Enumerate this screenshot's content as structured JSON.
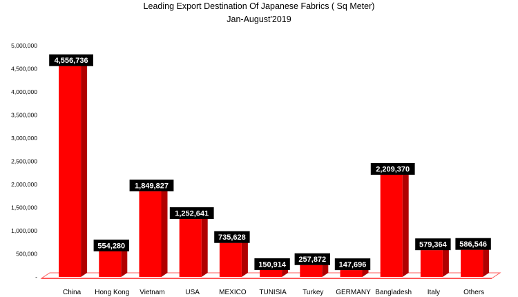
{
  "chart_data": {
    "type": "bar",
    "title": "Leading Export Destination Of Japanese Fabrics ( Sq Meter)",
    "subtitle": "Jan-August'2019",
    "categories": [
      "China",
      "Hong Kong",
      "Vietnam",
      "USA",
      "MEXICO",
      "TUNISIA",
      "Turkey",
      "GERMANY",
      "Bangladesh",
      "Italy",
      "Others"
    ],
    "values": [
      4556736,
      554280,
      1849827,
      1252641,
      735628,
      150914,
      257872,
      147696,
      2209370,
      579364,
      586546
    ],
    "data_labels": [
      "4,556,736",
      "554,280",
      "1,849,827",
      "1,252,641",
      "735,628",
      "150,914",
      "257,872",
      "147,696",
      "2,209,370",
      "579,364",
      "586,546"
    ],
    "y_ticks": [
      {
        "value": 0,
        "label": "-"
      },
      {
        "value": 500000,
        "label": "500,000"
      },
      {
        "value": 1000000,
        "label": "1,000,000"
      },
      {
        "value": 1500000,
        "label": "1,500,000"
      },
      {
        "value": 2000000,
        "label": "2,000,000"
      },
      {
        "value": 2500000,
        "label": "2,500,000"
      },
      {
        "value": 3000000,
        "label": "3,000,000"
      },
      {
        "value": 3500000,
        "label": "3,500,000"
      },
      {
        "value": 4000000,
        "label": "4,000,000"
      },
      {
        "value": 4500000,
        "label": "4,500,000"
      },
      {
        "value": 5000000,
        "label": "5,000,000"
      }
    ],
    "ylim": [
      0,
      5000000
    ],
    "grid": false,
    "legend": "none",
    "bar_style": "3d",
    "colors": {
      "bar_front": "#ff0000",
      "bar_side": "#b00000",
      "bar_top": "#e00000",
      "floor": "#ff5a5a",
      "label_bg": "#000000",
      "label_text": "#ffffff"
    }
  }
}
